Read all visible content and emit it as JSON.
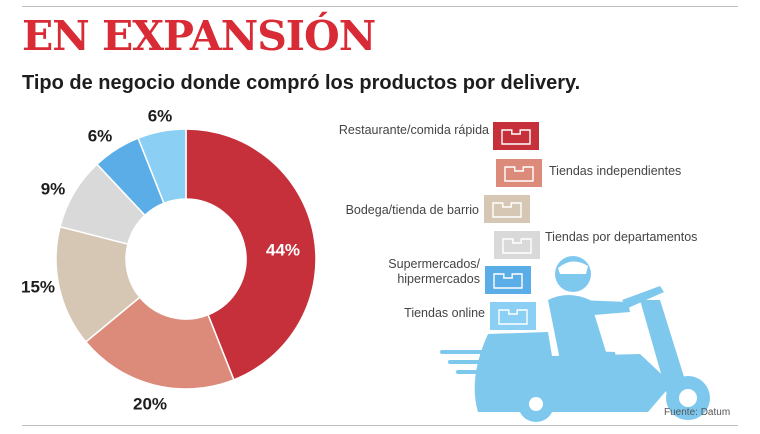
{
  "header": {
    "title": "EN EXPANSIÓN",
    "subtitle": "Tipo de negocio donde compró los productos por delivery."
  },
  "source": "Fuente: Datum",
  "colors": {
    "title_red": "#d82b35",
    "scooter_blue": "#7ec8ee"
  },
  "chart_data": {
    "type": "pie",
    "donut": true,
    "title": "Tipo de negocio donde compró los productos por delivery.",
    "categories": [
      "Restaurante/comida rápida",
      "Tiendas independientes",
      "Bodega/tienda de barrio",
      "Tiendas por departamentos",
      "Supermercados/ hipermercados",
      "Tiendas online"
    ],
    "values": [
      44,
      20,
      15,
      9,
      6,
      6
    ],
    "value_labels": [
      "44%",
      "20%",
      "15%",
      "9%",
      "6%",
      "6%"
    ],
    "unit": "%",
    "colors": [
      "#c6303a",
      "#dc8a7a",
      "#d6c7b5",
      "#d9d9d9",
      "#5aade6",
      "#8ccff4"
    ],
    "legend_placement": "right"
  }
}
